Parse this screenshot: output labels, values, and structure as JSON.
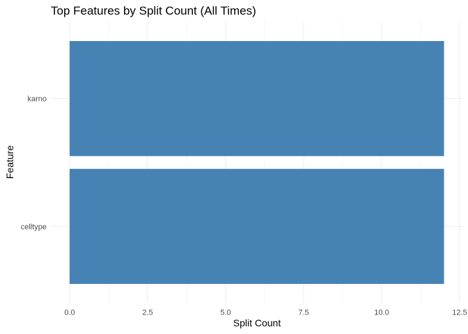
{
  "chart_data": {
    "type": "bar",
    "orientation": "horizontal",
    "title": "Top Features by Split Count (All Times)",
    "xlabel": "Split Count",
    "ylabel": "Feature",
    "categories": [
      "celltype",
      "karno"
    ],
    "values": [
      12,
      12
    ],
    "xlim": [
      0,
      12.5
    ],
    "xticks": [
      "0.0",
      "2.5",
      "5.0",
      "7.5",
      "10.0",
      "12.5"
    ],
    "grid": true,
    "bar_color": "#4682B4",
    "grid_color": "#EBEBEB"
  }
}
